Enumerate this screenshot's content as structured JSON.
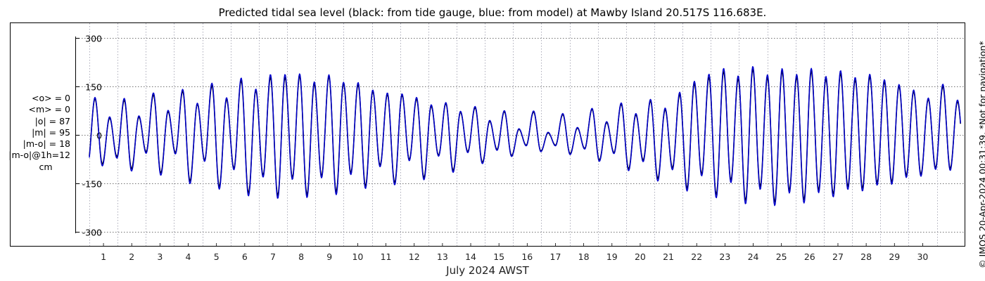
{
  "title": "Predicted tidal sea level (black: from tide gauge, blue: from model) at Mawby Island 20.517S 116.683E.",
  "stats": [
    "<o> = 0",
    "<m> = 0",
    "|o| = 87",
    "|m| = 95",
    "|m-o| = 18",
    "|m-o|@1h=12"
  ],
  "stats_unit": "cm",
  "credit": "© IMOS 20-Apr-2024 00:31:39. *Not for navigation*",
  "colors": {
    "gauge": "#000000",
    "model": "#0000cc"
  },
  "chart_data": {
    "type": "line",
    "title": "Predicted tidal sea level (black: from tide gauge, blue: from model) at Mawby Island 20.517S 116.683E.",
    "xlabel": "July 2024 AWST",
    "ylabel": "",
    "xlim": [
      0.3,
      31.0
    ],
    "ylim": [
      -320,
      320
    ],
    "x_ticks": [
      1,
      2,
      3,
      4,
      5,
      6,
      7,
      8,
      9,
      10,
      11,
      12,
      13,
      14,
      15,
      16,
      17,
      18,
      19,
      20,
      21,
      22,
      23,
      24,
      25,
      26,
      27,
      28,
      29,
      30
    ],
    "y_ticks": [
      -300,
      -150,
      0,
      150,
      300
    ],
    "grid": true,
    "sampling_step_days": 0.02,
    "series": [
      {
        "name": "from tide gauge",
        "color": "#000000",
        "highs": [
          112,
          52,
          107,
          55,
          124,
          72,
          135,
          95,
          152,
          110,
          168,
          137,
          178,
          178,
          182,
          157,
          180,
          158,
          156,
          135,
          125,
          123,
          111,
          89,
          97,
          70,
          84,
          42,
          72,
          17,
          71,
          6,
          63,
          21,
          79,
          38,
          95,
          62,
          105,
          78,
          125,
          158,
          178,
          196,
          174,
          203,
          177,
          196,
          178,
          197,
          173,
          190,
          170,
          180,
          164,
          150,
          134,
          110,
          150,
          103,
          126,
          47,
          135,
          25
        ],
        "lows": [
          -90,
          -67,
          -105,
          -53,
          -118,
          -55,
          -143,
          -78,
          -160,
          -103,
          -180,
          -125,
          -188,
          -132,
          -185,
          -127,
          -176,
          -117,
          -158,
          -94,
          -148,
          -76,
          -132,
          -63,
          -110,
          -52,
          -85,
          -45,
          -64,
          -32,
          -50,
          -32,
          -58,
          -42,
          -78,
          -55,
          -105,
          -78,
          -135,
          -102,
          -165,
          -120,
          -185,
          -140,
          -203,
          -160,
          -208,
          -171,
          -200,
          -170,
          -182,
          -160,
          -165,
          -148,
          -145,
          -125,
          -122,
          -102,
          -104,
          -83,
          -90,
          -56
        ]
      },
      {
        "name": "from model",
        "color": "#0000cc",
        "highs": [
          116,
          56,
          113,
          59,
          130,
          76,
          141,
          98,
          160,
          115,
          176,
          142,
          187,
          187,
          189,
          164,
          186,
          163,
          162,
          139,
          130,
          127,
          116,
          93,
          100,
          73,
          88,
          45,
          75,
          19,
          74,
          8,
          66,
          23,
          82,
          41,
          99,
          66,
          110,
          83,
          132,
          166,
          188,
          206,
          183,
          212,
          186,
          205,
          187,
          206,
          181,
          199,
          178,
          188,
          171,
          156,
          139,
          114,
          157,
          108,
          132,
          50,
          140,
          28
        ],
        "lows": [
          -96,
          -72,
          -112,
          -57,
          -125,
          -59,
          -151,
          -82,
          -168,
          -108,
          -189,
          -131,
          -197,
          -138,
          -194,
          -133,
          -185,
          -123,
          -166,
          -99,
          -155,
          -80,
          -139,
          -66,
          -116,
          -55,
          -89,
          -48,
          -67,
          -34,
          -52,
          -34,
          -61,
          -44,
          -82,
          -58,
          -111,
          -83,
          -143,
          -108,
          -174,
          -127,
          -195,
          -148,
          -214,
          -169,
          -219,
          -180,
          -211,
          -179,
          -192,
          -169,
          -174,
          -156,
          -153,
          -132,
          -128,
          -107,
          -110,
          -87,
          -95,
          -60
        ]
      }
    ]
  }
}
